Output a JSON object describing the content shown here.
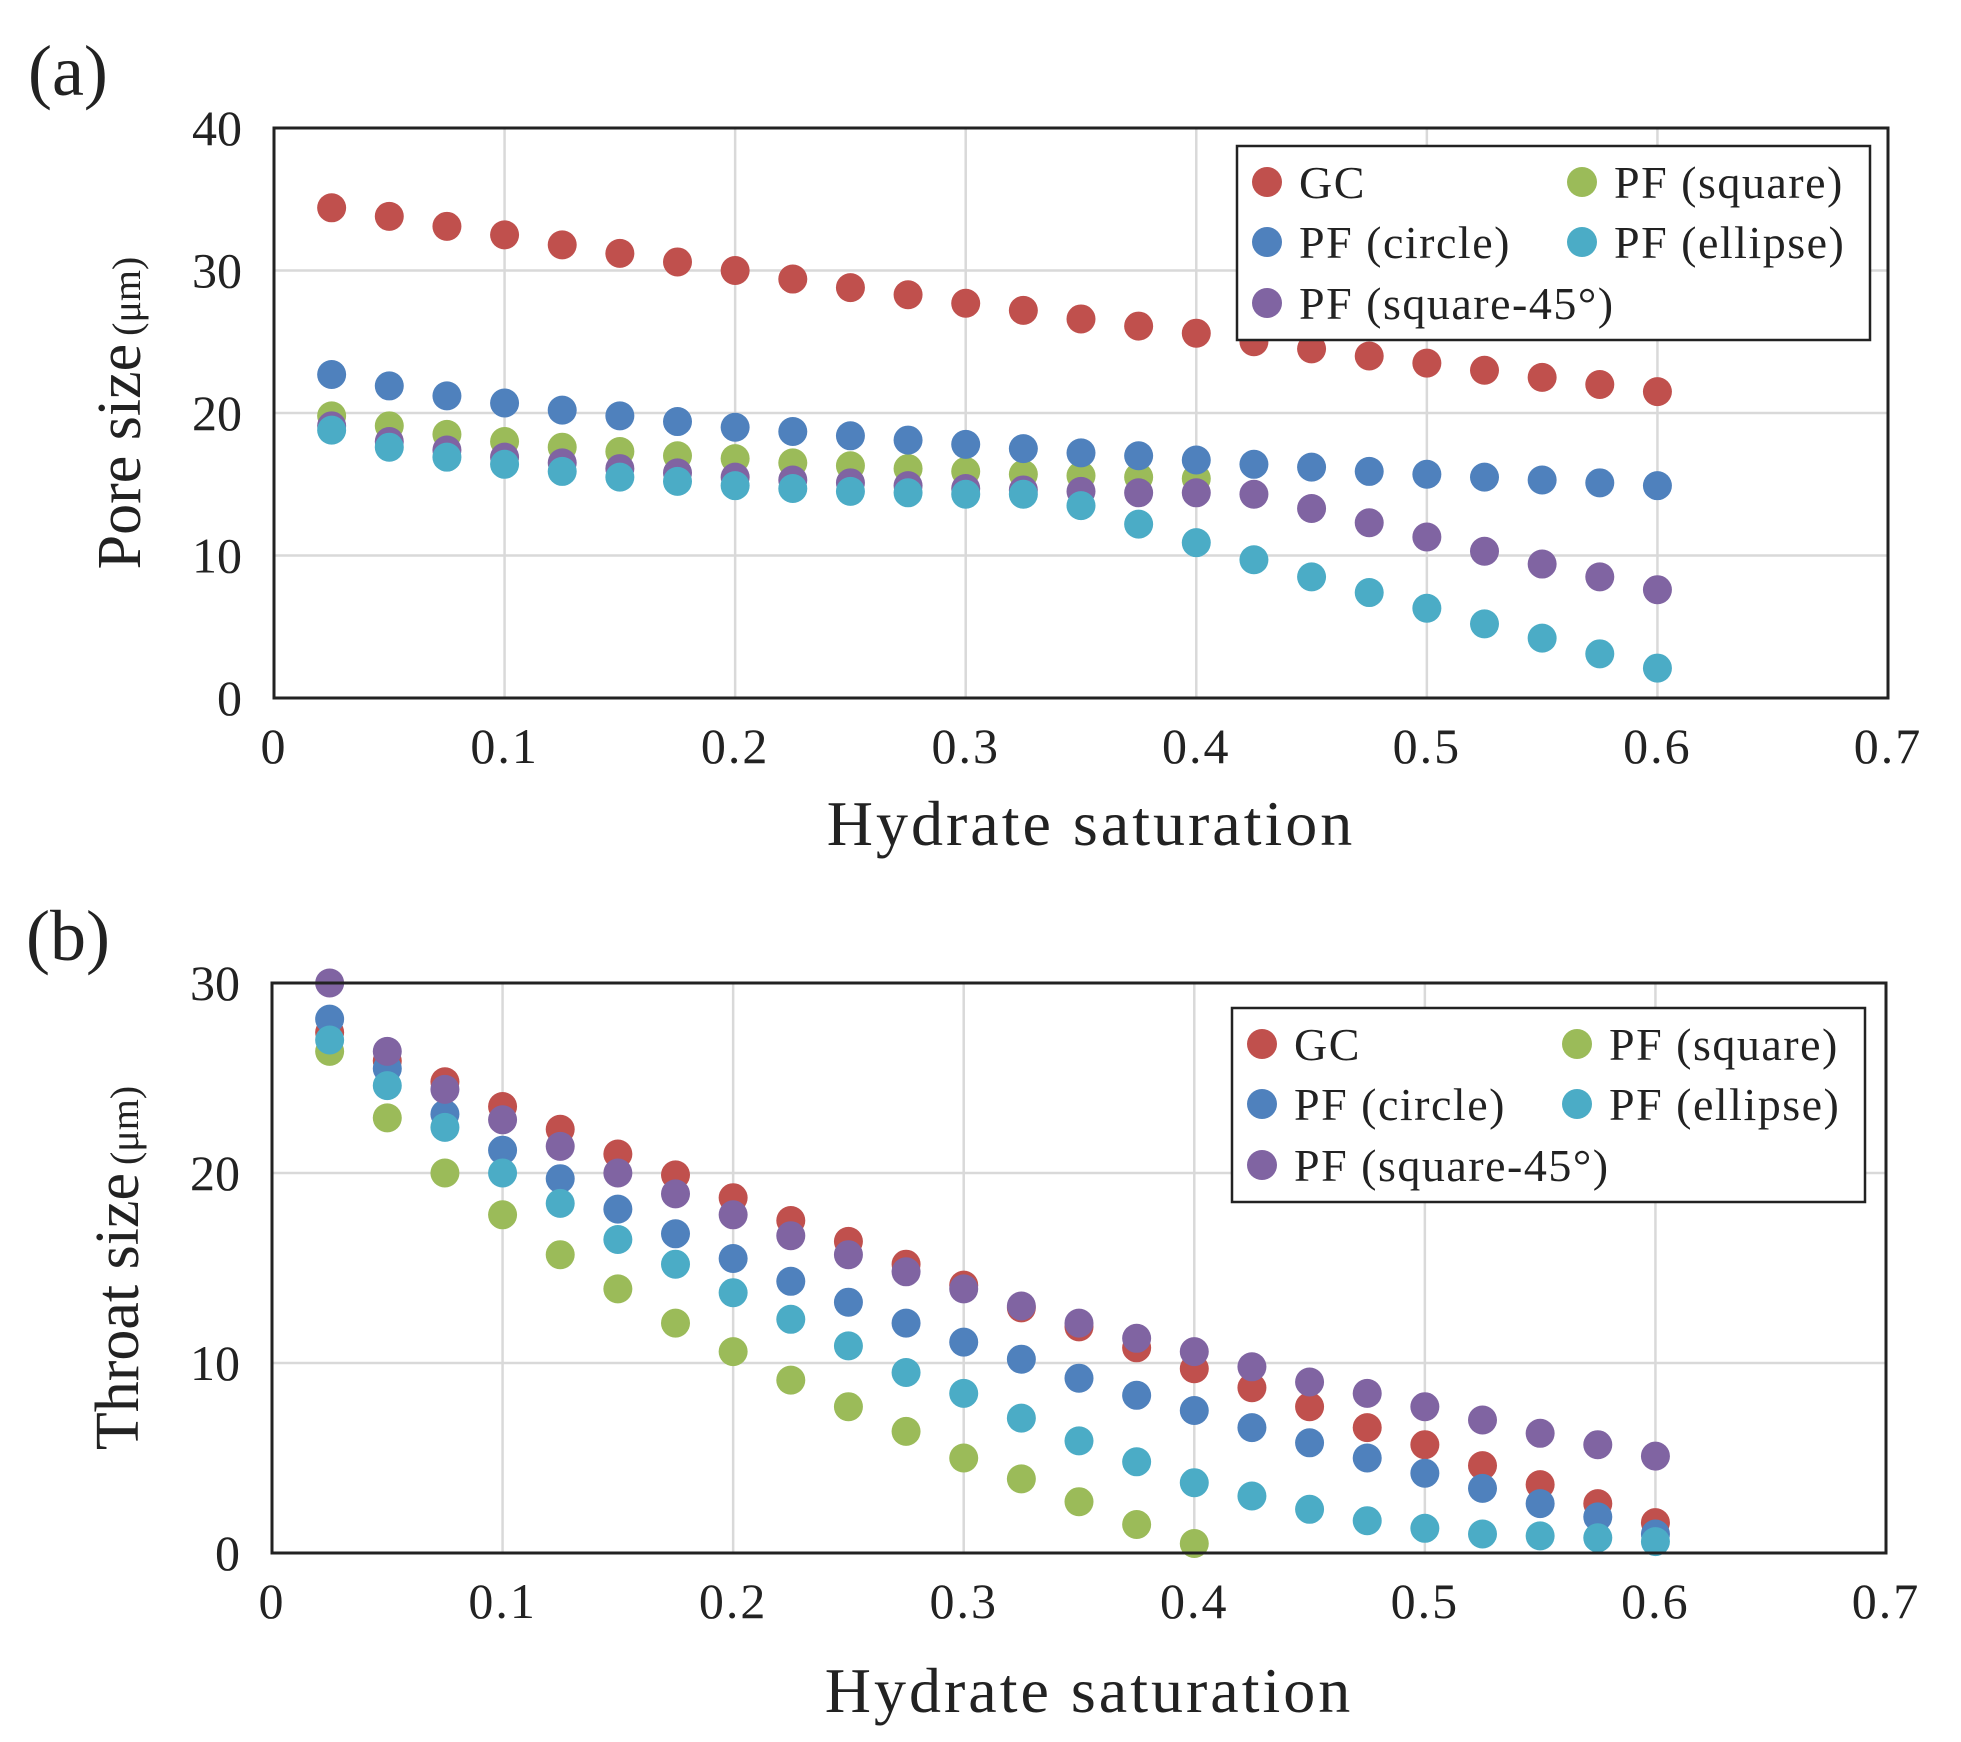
{
  "chart_data": [
    {
      "type": "scatter",
      "panel_label": "(a)",
      "xlabel": "Hydrate saturation",
      "ylabel": "Pore size",
      "ylabel_unit": "(μm)",
      "xlim": [
        0,
        0.7
      ],
      "ylim": [
        0,
        40
      ],
      "x_ticks": [
        0,
        0.1,
        0.2,
        0.3,
        0.4,
        0.5,
        0.6,
        0.7
      ],
      "x_tick_labels": [
        "0",
        "0.1",
        "0.2",
        "0.3",
        "0.4",
        "0.5",
        "0.6",
        "0.7"
      ],
      "y_ticks": [
        0,
        10,
        20,
        30,
        40
      ],
      "y_tick_labels": [
        "0",
        "10",
        "20",
        "30",
        "40"
      ],
      "grid": true,
      "legend_position": "top-right",
      "x": [
        0.025,
        0.05,
        0.075,
        0.1,
        0.125,
        0.15,
        0.175,
        0.2,
        0.225,
        0.25,
        0.275,
        0.3,
        0.325,
        0.35,
        0.375,
        0.4,
        0.425,
        0.45,
        0.475,
        0.5,
        0.525,
        0.55,
        0.575,
        0.6
      ],
      "series": [
        {
          "name": "PF (square)",
          "color": "#9bbb59",
          "values": [
            19.8,
            19.1,
            18.5,
            18.0,
            17.6,
            17.3,
            17.0,
            16.8,
            16.5,
            16.3,
            16.1,
            15.9,
            15.7,
            15.6,
            15.5,
            15.4,
            null,
            null,
            null,
            null,
            null,
            null,
            null,
            null
          ]
        },
        {
          "name": "PF (square-45°)",
          "color": "#8064a2",
          "values": [
            19.1,
            18.0,
            17.4,
            16.9,
            16.5,
            16.1,
            15.8,
            15.5,
            15.3,
            15.1,
            14.9,
            14.7,
            14.6,
            14.5,
            14.4,
            14.4,
            14.3,
            13.3,
            12.3,
            11.3,
            10.3,
            9.4,
            8.5,
            7.6
          ]
        },
        {
          "name": "PF (ellipse)",
          "color": "#4bacc6",
          "values": [
            18.8,
            17.6,
            16.9,
            16.4,
            15.9,
            15.5,
            15.2,
            14.9,
            14.7,
            14.5,
            14.4,
            14.3,
            14.3,
            13.5,
            12.2,
            10.9,
            9.7,
            8.5,
            7.4,
            6.3,
            5.2,
            4.2,
            3.1,
            2.1
          ]
        },
        {
          "name": "PF (circle)",
          "color": "#4f81bd",
          "values": [
            22.7,
            21.9,
            21.2,
            20.7,
            20.2,
            19.8,
            19.4,
            19.0,
            18.7,
            18.4,
            18.1,
            17.8,
            17.5,
            17.2,
            17.0,
            16.7,
            16.4,
            16.2,
            15.9,
            15.7,
            15.5,
            15.3,
            15.1,
            14.9
          ]
        },
        {
          "name": "GC",
          "color": "#c0504d",
          "values": [
            34.4,
            33.8,
            33.1,
            32.5,
            31.8,
            31.2,
            30.6,
            30.0,
            29.4,
            28.8,
            28.3,
            27.7,
            27.2,
            26.6,
            26.1,
            25.6,
            25.0,
            24.5,
            24.0,
            23.5,
            23.0,
            22.5,
            22.0,
            21.5
          ]
        }
      ],
      "legend": [
        {
          "name": "GC",
          "color": "#c0504d"
        },
        {
          "name": "PF (square)",
          "color": "#9bbb59"
        },
        {
          "name": "PF (circle)",
          "color": "#4f81bd"
        },
        {
          "name": "PF (ellipse)",
          "color": "#4bacc6"
        },
        {
          "name": "PF (square-45°)",
          "color": "#8064a2"
        }
      ]
    },
    {
      "type": "scatter",
      "panel_label": "(b)",
      "xlabel": "Hydrate saturation",
      "ylabel": "Throat size",
      "ylabel_unit": "(μm)",
      "xlim": [
        0,
        0.7
      ],
      "ylim": [
        0,
        30
      ],
      "x_ticks": [
        0,
        0.1,
        0.2,
        0.3,
        0.4,
        0.5,
        0.6,
        0.7
      ],
      "x_tick_labels": [
        "0",
        "0.1",
        "0.2",
        "0.3",
        "0.4",
        "0.5",
        "0.6",
        "0.7"
      ],
      "y_ticks": [
        0,
        10,
        20,
        30
      ],
      "y_tick_labels": [
        "0",
        "10",
        "20",
        "30"
      ],
      "grid": true,
      "legend_position": "top-right",
      "x": [
        0.025,
        0.05,
        0.075,
        0.1,
        0.125,
        0.15,
        0.175,
        0.2,
        0.225,
        0.25,
        0.275,
        0.3,
        0.325,
        0.35,
        0.375,
        0.4,
        0.425,
        0.45,
        0.475,
        0.5,
        0.525,
        0.55,
        0.575,
        0.6
      ],
      "series": [
        {
          "name": "GC",
          "color": "#c0504d",
          "values": [
            27.4,
            25.9,
            24.8,
            23.5,
            22.3,
            21.0,
            19.9,
            18.7,
            17.5,
            16.4,
            15.2,
            14.1,
            12.9,
            11.9,
            10.8,
            9.7,
            8.7,
            7.7,
            6.6,
            5.7,
            4.6,
            3.6,
            2.6,
            1.6
          ]
        },
        {
          "name": "PF (square)",
          "color": "#9bbb59",
          "values": [
            26.4,
            22.9,
            20.0,
            17.8,
            15.7,
            13.9,
            12.1,
            10.6,
            9.1,
            7.7,
            6.4,
            5.0,
            3.9,
            2.7,
            1.5,
            0.5,
            null,
            null,
            null,
            null,
            null,
            null,
            null,
            null
          ]
        },
        {
          "name": "PF (circle)",
          "color": "#4f81bd",
          "values": [
            28.1,
            25.5,
            23.1,
            21.2,
            19.7,
            18.1,
            16.8,
            15.5,
            14.3,
            13.2,
            12.1,
            11.1,
            10.2,
            9.2,
            8.3,
            7.5,
            6.6,
            5.8,
            5.0,
            4.2,
            3.4,
            2.6,
            1.9,
            1.0
          ]
        },
        {
          "name": "PF (ellipse)",
          "color": "#4bacc6",
          "values": [
            27.0,
            24.6,
            22.4,
            20.0,
            18.4,
            16.5,
            15.2,
            13.7,
            12.3,
            10.9,
            9.5,
            8.4,
            7.1,
            5.9,
            4.8,
            3.7,
            3.0,
            2.3,
            1.7,
            1.3,
            1.0,
            0.9,
            0.8,
            0.6
          ]
        },
        {
          "name": "PF (square-45°)",
          "color": "#8064a2",
          "values": [
            30.0,
            26.4,
            24.4,
            22.8,
            21.4,
            20.0,
            18.9,
            17.8,
            16.7,
            15.7,
            14.8,
            13.9,
            13.0,
            12.1,
            11.3,
            10.6,
            9.8,
            9.0,
            8.4,
            7.7,
            7.0,
            6.3,
            5.7,
            5.1
          ]
        }
      ],
      "legend": [
        {
          "name": "GC",
          "color": "#c0504d"
        },
        {
          "name": "PF (square)",
          "color": "#9bbb59"
        },
        {
          "name": "PF (circle)",
          "color": "#4f81bd"
        },
        {
          "name": "PF (ellipse)",
          "color": "#4bacc6"
        },
        {
          "name": "PF (square-45°)",
          "color": "#8064a2"
        }
      ]
    }
  ]
}
